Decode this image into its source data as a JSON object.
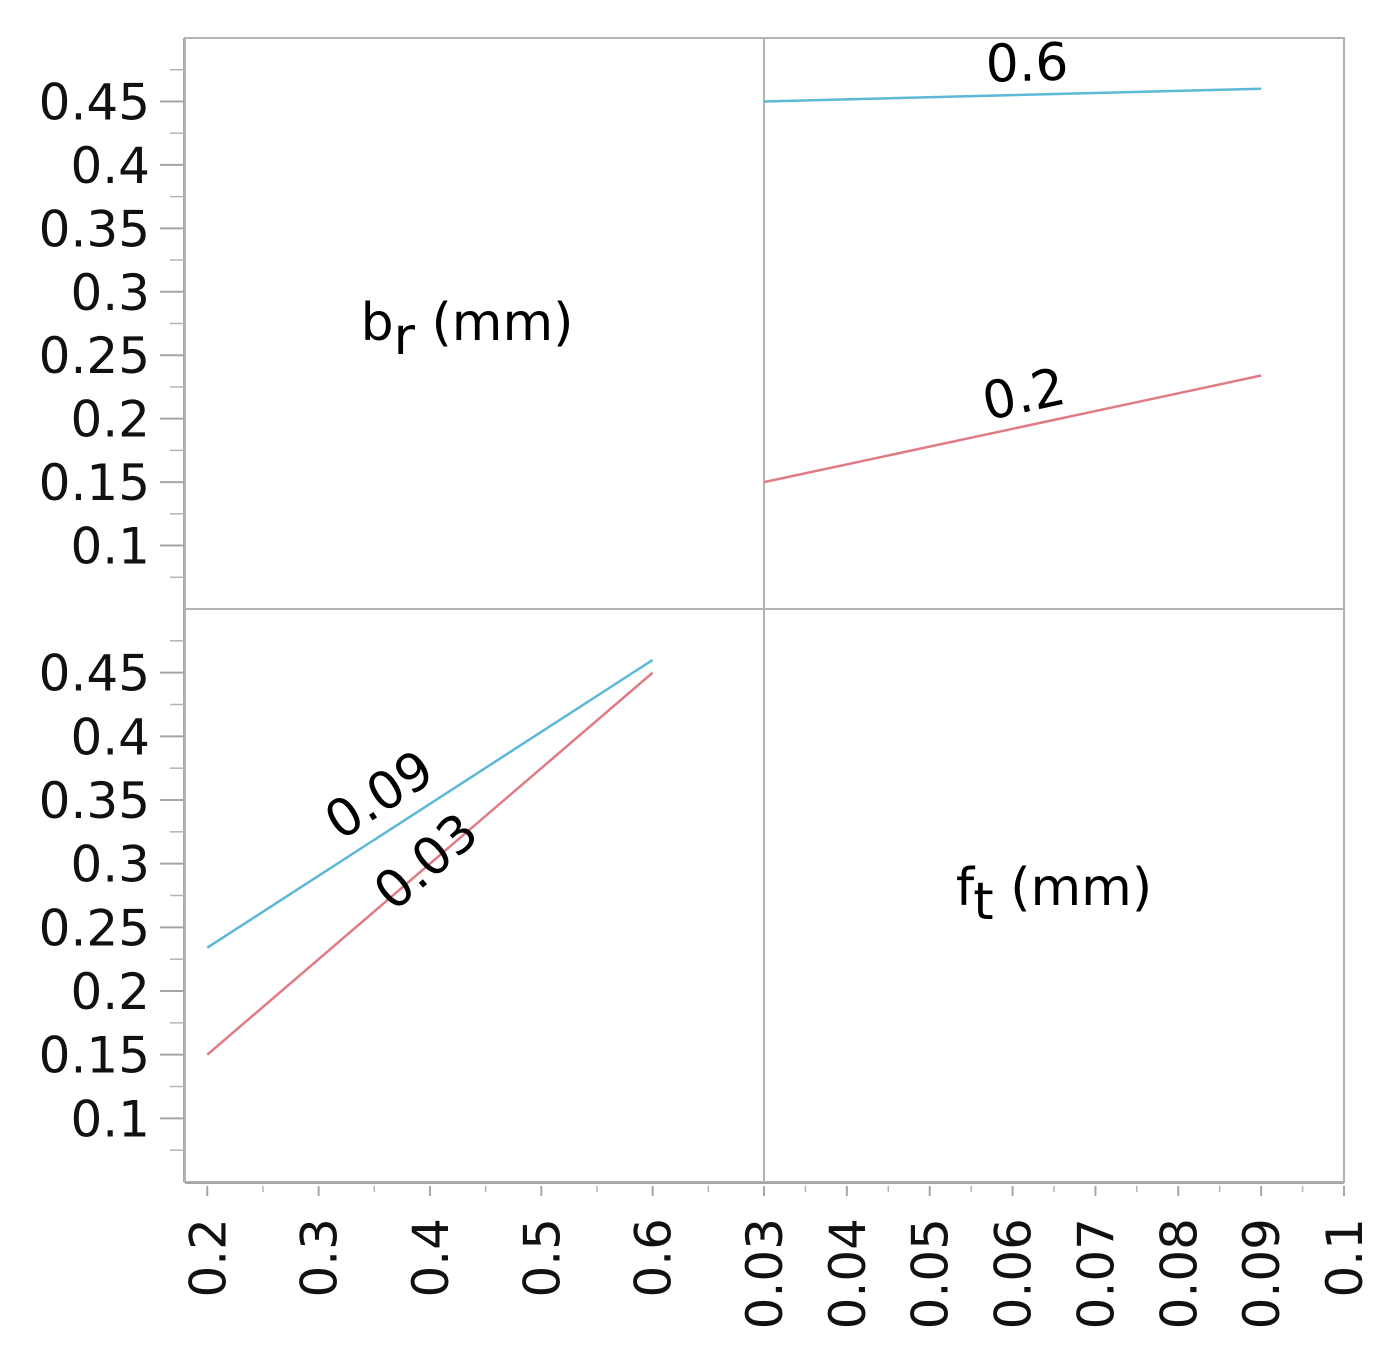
{
  "chart_data": {
    "type": "line",
    "layout": "interaction-profile-matrix",
    "y_axis": {
      "ylim": [
        0.05,
        0.5
      ],
      "ticks": [
        0.1,
        0.15,
        0.2,
        0.25,
        0.3,
        0.35,
        0.4,
        0.45
      ],
      "tick_labels": [
        "0.1",
        "0.15",
        "0.2",
        "0.25",
        "0.3",
        "0.35",
        "0.4",
        "0.45"
      ]
    },
    "variables": [
      {
        "name": "b",
        "subscript": "r",
        "unit": " (mm)",
        "xlim": [
          0.18,
          0.7
        ],
        "ticks": [
          0.2,
          0.3,
          0.4,
          0.5,
          0.6
        ],
        "tick_labels": [
          "0.2",
          "0.3",
          "0.4",
          "0.5",
          "0.6"
        ]
      },
      {
        "name": "f",
        "subscript": "t",
        "unit": " (mm)",
        "xlim": [
          0.03,
          0.1
        ],
        "ticks": [
          0.03,
          0.04,
          0.05,
          0.06,
          0.07,
          0.08,
          0.09,
          0.1
        ],
        "tick_labels": [
          "0.03",
          "0.04",
          "0.05",
          "0.06",
          "0.07",
          "0.08",
          "0.09",
          "0.1"
        ]
      }
    ],
    "panels": [
      {
        "row": 0,
        "col": 1,
        "x_variable": "f_t",
        "series": [
          {
            "name": "0.6",
            "color": "#5bb8d6",
            "x": [
              0.03,
              0.09
            ],
            "y": [
              0.45,
              0.46
            ]
          },
          {
            "name": "0.2",
            "color": "#e07b85",
            "x": [
              0.03,
              0.09
            ],
            "y": [
              0.15,
              0.234
            ]
          }
        ]
      },
      {
        "row": 1,
        "col": 0,
        "x_variable": "b_r",
        "series": [
          {
            "name": "0.09",
            "color": "#5bb8d6",
            "x": [
              0.2,
              0.6
            ],
            "y": [
              0.234,
              0.46
            ]
          },
          {
            "name": "0.03",
            "color": "#e07b85",
            "x": [
              0.2,
              0.6
            ],
            "y": [
              0.15,
              0.45
            ]
          }
        ]
      }
    ]
  }
}
